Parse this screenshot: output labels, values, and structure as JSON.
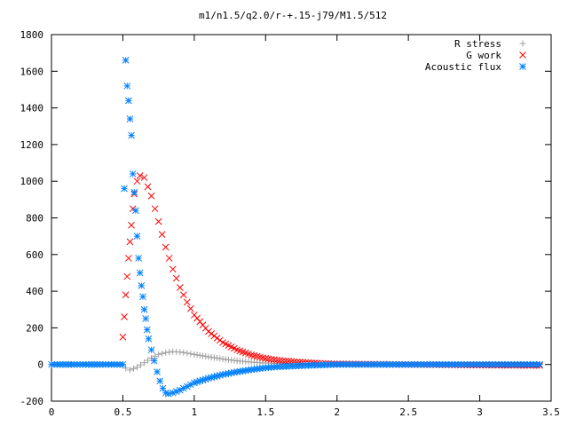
{
  "chart_data": {
    "type": "scatter",
    "title": "m1/n1.5/q2.0/r-+.15-j79/M1.5/512",
    "xlabel": "",
    "ylabel": "",
    "xlim": [
      0,
      3.5
    ],
    "ylim": [
      -200,
      1800
    ],
    "x_ticks": [
      "0",
      "0.5",
      "1",
      "1.5",
      "2",
      "2.5",
      "3",
      "3.5"
    ],
    "y_ticks": [
      "-200",
      "0",
      "200",
      "400",
      "600",
      "800",
      "1000",
      "1200",
      "1400",
      "1600",
      "1800"
    ],
    "legend_position": "top-right",
    "grid": false,
    "series": [
      {
        "name": "R stress",
        "marker": "plus",
        "color": "#a0a0a0",
        "points": [
          [
            0,
            0
          ],
          [
            0.2,
            0
          ],
          [
            0.4,
            0
          ],
          [
            0.5,
            0
          ],
          [
            0.52,
            -20
          ],
          [
            0.55,
            -30
          ],
          [
            0.6,
            -15
          ],
          [
            0.65,
            10
          ],
          [
            0.7,
            35
          ],
          [
            0.75,
            55
          ],
          [
            0.8,
            65
          ],
          [
            0.85,
            70
          ],
          [
            0.9,
            68
          ],
          [
            0.95,
            62
          ],
          [
            1.0,
            55
          ],
          [
            1.1,
            42
          ],
          [
            1.2,
            30
          ],
          [
            1.3,
            20
          ],
          [
            1.4,
            13
          ],
          [
            1.5,
            8
          ],
          [
            1.6,
            5
          ],
          [
            1.8,
            2
          ],
          [
            2.0,
            0
          ],
          [
            2.5,
            0
          ],
          [
            3.0,
            0
          ],
          [
            3.42,
            0
          ]
        ]
      },
      {
        "name": "G work",
        "marker": "cross",
        "color": "#ff0000",
        "points": [
          [
            0.5,
            150
          ],
          [
            0.51,
            260
          ],
          [
            0.52,
            380
          ],
          [
            0.53,
            480
          ],
          [
            0.54,
            580
          ],
          [
            0.55,
            670
          ],
          [
            0.56,
            760
          ],
          [
            0.57,
            850
          ],
          [
            0.58,
            930
          ],
          [
            0.6,
            1000
          ],
          [
            0.62,
            1030
          ],
          [
            0.65,
            1020
          ],
          [
            0.7,
            920
          ],
          [
            0.75,
            780
          ],
          [
            0.8,
            640
          ],
          [
            0.85,
            520
          ],
          [
            0.9,
            420
          ],
          [
            0.95,
            340
          ],
          [
            1.0,
            270
          ],
          [
            1.1,
            180
          ],
          [
            1.2,
            120
          ],
          [
            1.3,
            80
          ],
          [
            1.4,
            52
          ],
          [
            1.5,
            33
          ],
          [
            1.6,
            22
          ],
          [
            1.7,
            15
          ],
          [
            1.8,
            10
          ],
          [
            1.9,
            6
          ],
          [
            2.0,
            3
          ],
          [
            2.5,
            0
          ],
          [
            3.0,
            -3
          ],
          [
            3.42,
            -5
          ]
        ]
      },
      {
        "name": "Acoustic flux",
        "marker": "star",
        "color": "#0080ff",
        "points": [
          [
            0,
            0
          ],
          [
            0.1,
            0
          ],
          [
            0.2,
            0
          ],
          [
            0.3,
            0
          ],
          [
            0.4,
            0
          ],
          [
            0.5,
            0
          ],
          [
            0.51,
            960
          ],
          [
            0.52,
            1660
          ],
          [
            0.53,
            1520
          ],
          [
            0.54,
            1440
          ],
          [
            0.55,
            1340
          ],
          [
            0.56,
            1250
          ],
          [
            0.57,
            1040
          ],
          [
            0.58,
            940
          ],
          [
            0.59,
            840
          ],
          [
            0.6,
            700
          ],
          [
            0.61,
            580
          ],
          [
            0.62,
            500
          ],
          [
            0.63,
            430
          ],
          [
            0.64,
            370
          ],
          [
            0.65,
            300
          ],
          [
            0.66,
            250
          ],
          [
            0.67,
            190
          ],
          [
            0.68,
            140
          ],
          [
            0.7,
            80
          ],
          [
            0.72,
            20
          ],
          [
            0.74,
            -40
          ],
          [
            0.76,
            -90
          ],
          [
            0.78,
            -130
          ],
          [
            0.8,
            -155
          ],
          [
            0.82,
            -160
          ],
          [
            0.85,
            -155
          ],
          [
            0.9,
            -140
          ],
          [
            0.95,
            -120
          ],
          [
            1.0,
            -100
          ],
          [
            1.1,
            -75
          ],
          [
            1.2,
            -55
          ],
          [
            1.3,
            -40
          ],
          [
            1.4,
            -28
          ],
          [
            1.5,
            -18
          ],
          [
            1.6,
            -12
          ],
          [
            1.8,
            -5
          ],
          [
            2.0,
            0
          ],
          [
            2.5,
            0
          ],
          [
            3.0,
            0
          ],
          [
            3.42,
            0
          ]
        ]
      }
    ]
  }
}
